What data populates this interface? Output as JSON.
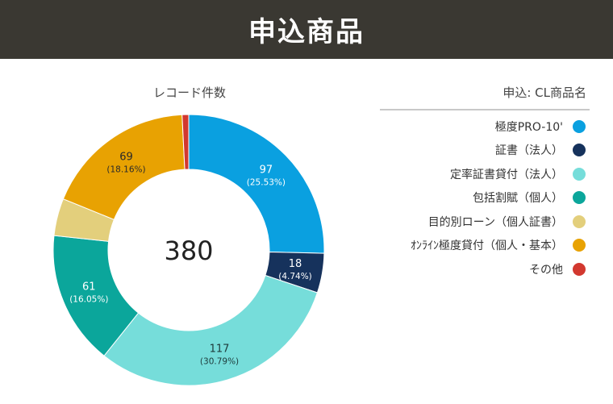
{
  "header": {
    "title": "申込商品"
  },
  "chart_data": {
    "type": "donut",
    "title": "レコード件数",
    "total": "380",
    "legend_title": "申込: CL商品名",
    "legend_position": "right",
    "slices": [
      {
        "name": "極度PRO-10'",
        "value": 97,
        "percent": "25.53%",
        "color": "#0aa0e0",
        "label_color": "#ffffff"
      },
      {
        "name": "証書（法人）",
        "value": 18,
        "percent": "4.74%",
        "color": "#16325c",
        "label_color": "#ffffff"
      },
      {
        "name": "定率証書貸付（法人）",
        "value": 117,
        "percent": "30.79%",
        "color": "#76ddda",
        "label_color": "#1e3a3a"
      },
      {
        "name": "包括割賦（個人）",
        "value": 61,
        "percent": "16.05%",
        "color": "#0ba69b",
        "label_color": "#ffffff"
      },
      {
        "name": "目的別ローン（個人証書）",
        "value": 17,
        "percent": "",
        "color": "#e3cf7c",
        "label_color": "#333333"
      },
      {
        "name": "ｵﾝﾗｲﾝ極度貸付（個人・基本）",
        "value": 69,
        "percent": "18.16%",
        "color": "#e8a202",
        "label_color": "#2a2a2a"
      },
      {
        "name": "その他",
        "value": 3,
        "percent": "",
        "color": "#d2382f",
        "label_color": "#ffffff"
      }
    ]
  }
}
